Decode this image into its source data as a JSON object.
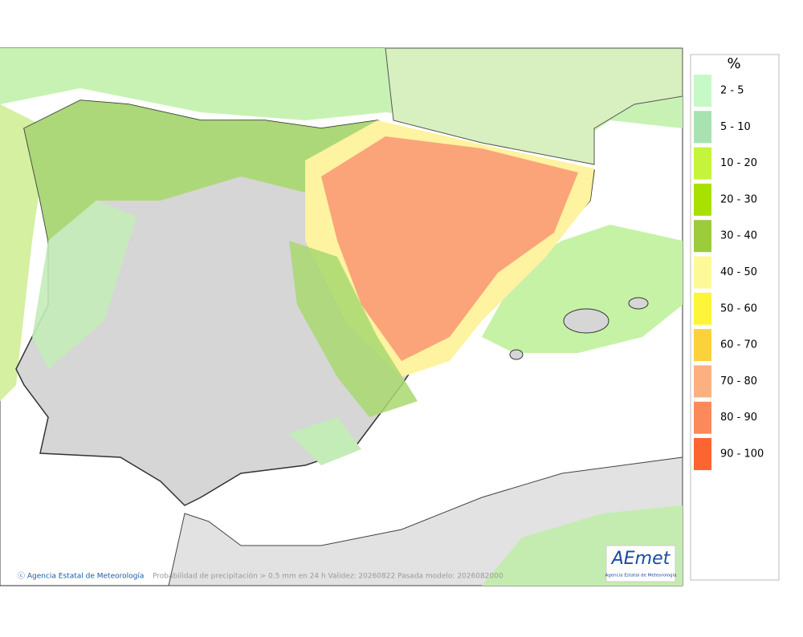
{
  "legend": {
    "title": "%",
    "items": [
      {
        "label": "2 - 5",
        "color": "#c6f9c6"
      },
      {
        "label": "5 - 10",
        "color": "#a8e2b0"
      },
      {
        "label": "10 - 20",
        "color": "#c4f53a"
      },
      {
        "label": "20 - 30",
        "color": "#a8e000"
      },
      {
        "label": "30 - 40",
        "color": "#9ccc3c"
      },
      {
        "label": "40 - 50",
        "color": "#fdf99a"
      },
      {
        "label": "50 - 60",
        "color": "#fcf53a"
      },
      {
        "label": "60 - 70",
        "color": "#fbd23c"
      },
      {
        "label": "70 - 80",
        "color": "#fcb080"
      },
      {
        "label": "80 - 90",
        "color": "#fb8a5a"
      },
      {
        "label": "90 - 100",
        "color": "#fc6432"
      }
    ]
  },
  "footer": {
    "credit": "ⓒ Agencia Estatal de Meteorología",
    "caption": "Probabilidad de precipitación > 0.5 mm en 24 h Validez: 20260822 Pasada modelo: 2026082000"
  },
  "logo": {
    "name": "AEmet",
    "subtitle": "Agencia Estatal de Meteorología"
  }
}
